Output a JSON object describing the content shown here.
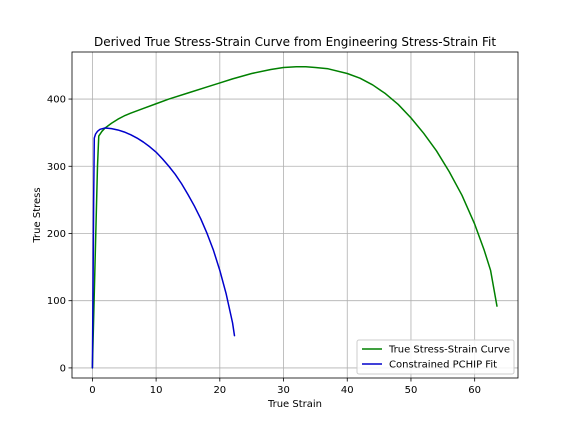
{
  "chart_data": {
    "type": "line",
    "title": "Derived True Stress-Strain Curve from Engineering Stress-Strain Fit",
    "xlabel": "True Strain",
    "ylabel": "True Stress",
    "xlim": [
      -3.2,
      66.8
    ],
    "ylim": [
      -15,
      470
    ],
    "xticks": [
      0,
      10,
      20,
      30,
      40,
      50,
      60
    ],
    "yticks": [
      0,
      100,
      200,
      300,
      400
    ],
    "grid": true,
    "legend_position": "lower-right",
    "series": [
      {
        "name": "True Stress-Strain Curve",
        "color": "#008000",
        "points": [
          [
            0.0,
            0
          ],
          [
            0.4,
            150
          ],
          [
            0.8,
            300
          ],
          [
            1.0,
            345
          ],
          [
            1.5,
            352
          ],
          [
            2.0,
            357
          ],
          [
            3.0,
            364
          ],
          [
            4.0,
            370
          ],
          [
            5.0,
            375
          ],
          [
            6.0,
            379
          ],
          [
            8.0,
            386
          ],
          [
            10.0,
            393
          ],
          [
            12.0,
            400
          ],
          [
            15.0,
            409
          ],
          [
            18.0,
            418
          ],
          [
            20.0,
            424
          ],
          [
            22.0,
            430
          ],
          [
            25.0,
            438
          ],
          [
            28.0,
            444
          ],
          [
            30.0,
            447
          ],
          [
            32.0,
            448
          ],
          [
            33.5,
            448
          ],
          [
            35.0,
            447
          ],
          [
            37.0,
            445
          ],
          [
            40.0,
            438
          ],
          [
            42.0,
            431
          ],
          [
            44.0,
            421
          ],
          [
            46.0,
            408
          ],
          [
            48.0,
            392
          ],
          [
            50.0,
            372
          ],
          [
            52.0,
            349
          ],
          [
            54.0,
            323
          ],
          [
            56.0,
            292
          ],
          [
            58.0,
            257
          ],
          [
            60.0,
            214
          ],
          [
            61.5,
            175
          ],
          [
            62.5,
            145
          ],
          [
            63.5,
            92
          ]
        ]
      },
      {
        "name": "Constrained PCHIP Fit",
        "color": "#0000cc",
        "points": [
          [
            0.0,
            0
          ],
          [
            0.1,
            120
          ],
          [
            0.2,
            250
          ],
          [
            0.3,
            342
          ],
          [
            0.5,
            348
          ],
          [
            0.8,
            352
          ],
          [
            1.2,
            355
          ],
          [
            2.0,
            357
          ],
          [
            3.0,
            356
          ],
          [
            4.0,
            354
          ],
          [
            5.0,
            351
          ],
          [
            6.0,
            347
          ],
          [
            7.0,
            342
          ],
          [
            8.0,
            336
          ],
          [
            9.0,
            329
          ],
          [
            10.0,
            321
          ],
          [
            11.0,
            311
          ],
          [
            12.0,
            300
          ],
          [
            13.0,
            288
          ],
          [
            14.0,
            274
          ],
          [
            15.0,
            258
          ],
          [
            16.0,
            241
          ],
          [
            17.0,
            222
          ],
          [
            18.0,
            200
          ],
          [
            19.0,
            175
          ],
          [
            20.0,
            145
          ],
          [
            21.0,
            110
          ],
          [
            22.0,
            67
          ],
          [
            22.3,
            48
          ]
        ]
      }
    ]
  }
}
